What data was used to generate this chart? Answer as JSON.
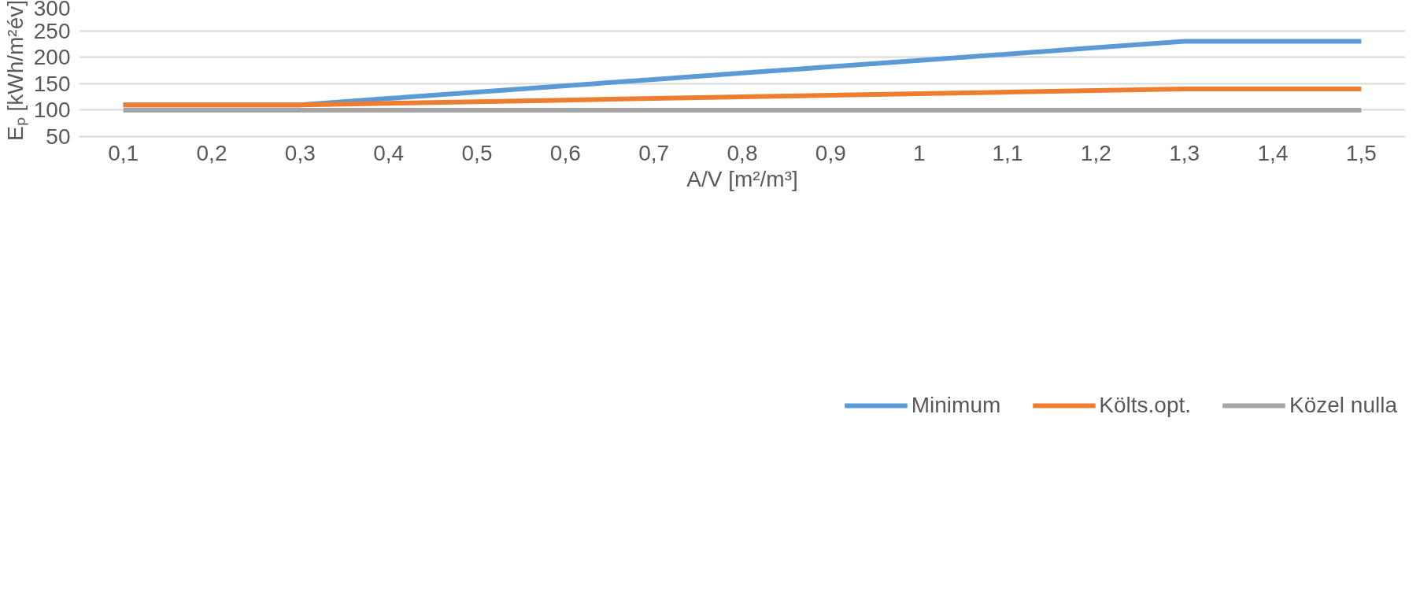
{
  "chart_data": {
    "type": "line",
    "xlabel": "A/V [m²/m³]",
    "ylabel": "Eₚ [kWh/m²év]",
    "categories": [
      "0,1",
      "0,2",
      "0,3",
      "0,4",
      "0,5",
      "0,6",
      "0,7",
      "0,8",
      "0,9",
      "1",
      "1,1",
      "1,2",
      "1,3",
      "1,4",
      "1,5"
    ],
    "series": [
      {
        "name": "Minimum",
        "color": "#5b9bd5",
        "values": [
          110,
          110,
          110,
          122,
          134,
          146,
          158,
          170,
          182,
          194,
          206,
          218,
          230,
          230,
          230
        ]
      },
      {
        "name": "Költs.opt.",
        "color": "#ed7d31",
        "values": [
          110,
          110,
          110,
          113,
          116,
          119,
          122,
          125,
          128,
          131,
          134,
          137,
          140,
          140,
          140
        ]
      },
      {
        "name": "Közel nulla",
        "color": "#a5a5a5",
        "values": [
          100,
          100,
          100,
          100,
          100,
          100,
          100,
          100,
          100,
          100,
          100,
          100,
          100,
          100,
          100
        ]
      }
    ],
    "ylim": [
      50,
      300
    ],
    "yticks": [
      50,
      100,
      150,
      200,
      250,
      300
    ],
    "grid": "y",
    "legend": "bottom",
    "marker": "none",
    "line_style": "solid"
  }
}
